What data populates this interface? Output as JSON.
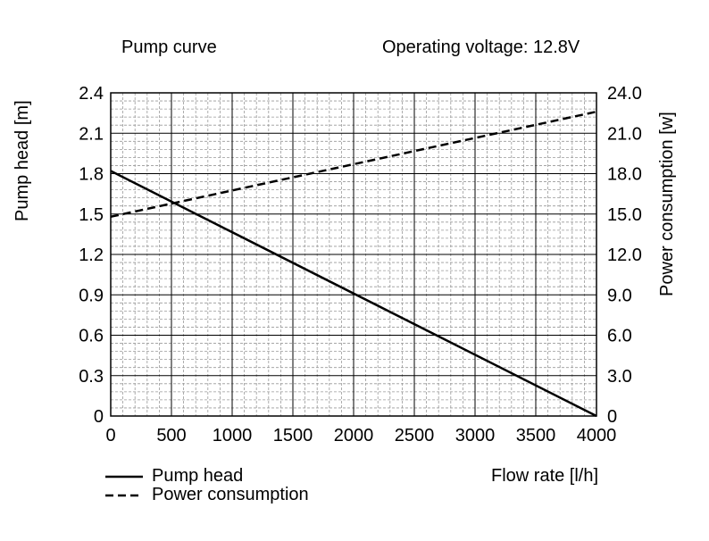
{
  "chart_data": {
    "type": "line",
    "title": "Pump curve",
    "subtitle": "Operating voltage: 12.8V",
    "xlabel": "Flow rate [l/h]",
    "ylabel_left": "Pump head [m]",
    "ylabel_right": "Power consumption [w]",
    "xlim": [
      0,
      4000
    ],
    "ylim_left": [
      0,
      2.4
    ],
    "ylim_right": [
      0,
      24.0
    ],
    "x_ticks": [
      "0",
      "500",
      "1000",
      "1500",
      "2000",
      "2500",
      "3000",
      "3500",
      "4000"
    ],
    "y_left_ticks": [
      "0",
      "0.3",
      "0.6",
      "0.9",
      "1.2",
      "1.5",
      "1.8",
      "2.1",
      "2.4"
    ],
    "y_right_ticks": [
      "0",
      "3.0",
      "6.0",
      "9.0",
      "12.0",
      "15.0",
      "18.0",
      "21.0",
      "24.0"
    ],
    "grid": true,
    "legend_position": "bottom-left",
    "series": [
      {
        "name": "Pump head",
        "axis": "left",
        "style": "solid",
        "x": [
          0,
          4000
        ],
        "y": [
          1.82,
          0
        ]
      },
      {
        "name": "Power consumption",
        "axis": "right",
        "style": "dashed",
        "x": [
          0,
          4000
        ],
        "y": [
          14.8,
          22.6
        ]
      }
    ]
  }
}
